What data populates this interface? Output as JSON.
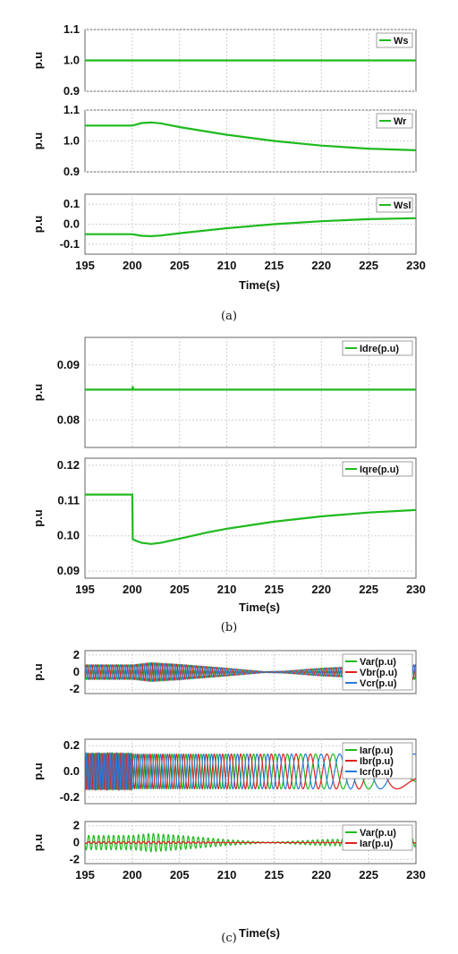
{
  "colors": {
    "green": "#1fba1f",
    "red": "#e02020",
    "blue": "#2a7ad8",
    "grid": "#cfcfcf"
  },
  "x_ticks": [
    "195",
    "200",
    "205",
    "210",
    "215",
    "220",
    "225",
    "230"
  ],
  "x_label": "Time(s)",
  "y_label": "p.u",
  "captions": {
    "a": "(a)",
    "b": "(b)",
    "c": "(c)"
  },
  "chart_data": [
    {
      "type": "line",
      "panel": "a1",
      "xlim": [
        195,
        230
      ],
      "ylim": [
        0.9,
        1.1
      ],
      "yticks": [
        "0.9",
        "1.0",
        "1.1"
      ],
      "ylabel": "p.u",
      "series": [
        {
          "name": "Ws",
          "color": "green",
          "x": [
            195,
            230
          ],
          "y": [
            1.0,
            1.0
          ]
        }
      ]
    },
    {
      "type": "line",
      "panel": "a2",
      "xlim": [
        195,
        230
      ],
      "ylim": [
        0.9,
        1.1
      ],
      "yticks": [
        "0.9",
        "1.0",
        "1.1"
      ],
      "ylabel": "p.u",
      "series": [
        {
          "name": "Wr",
          "color": "green",
          "x": [
            195,
            200,
            201,
            202,
            203,
            205,
            210,
            215,
            220,
            225,
            230
          ],
          "y": [
            1.05,
            1.05,
            1.058,
            1.06,
            1.057,
            1.045,
            1.02,
            1.0,
            0.985,
            0.975,
            0.97
          ]
        }
      ]
    },
    {
      "type": "line",
      "panel": "a3",
      "xlim": [
        195,
        230
      ],
      "ylim": [
        -0.15,
        0.15
      ],
      "yticks": [
        "-0.1",
        "0.0",
        "0.1"
      ],
      "ylabel": "p.u",
      "series": [
        {
          "name": "Wsl",
          "color": "green",
          "x": [
            195,
            200,
            201,
            202,
            203,
            205,
            210,
            215,
            220,
            225,
            230
          ],
          "y": [
            -0.05,
            -0.05,
            -0.058,
            -0.06,
            -0.057,
            -0.045,
            -0.02,
            0.0,
            0.015,
            0.025,
            0.03
          ]
        }
      ]
    },
    {
      "type": "line",
      "panel": "b1",
      "xlim": [
        195,
        230
      ],
      "ylim": [
        0.075,
        0.095
      ],
      "yticks": [
        "0.08",
        "0.09"
      ],
      "ylabel": "p.u",
      "series": [
        {
          "name": "Idre(p.u)",
          "color": "green",
          "x": [
            195,
            200,
            200.05,
            200.1,
            200.2,
            230
          ],
          "y": [
            0.0855,
            0.0855,
            0.0861,
            0.0855,
            0.0855,
            0.0855
          ]
        }
      ]
    },
    {
      "type": "line",
      "panel": "b2",
      "xlim": [
        195,
        230
      ],
      "ylim": [
        0.088,
        0.122
      ],
      "yticks": [
        "0.09",
        "0.10",
        "0.11",
        "0.12"
      ],
      "ylabel": "p.u",
      "series": [
        {
          "name": "Iqre(p.u)",
          "color": "green",
          "x": [
            195,
            200,
            200.05,
            200.5,
            201,
            202,
            203,
            205,
            208,
            210,
            215,
            220,
            225,
            230
          ],
          "y": [
            0.1117,
            0.1117,
            0.099,
            0.0985,
            0.098,
            0.0977,
            0.098,
            0.0992,
            0.101,
            0.102,
            0.104,
            0.1055,
            0.1066,
            0.1073
          ]
        }
      ]
    },
    {
      "type": "line",
      "panel": "c1",
      "xlim": [
        195,
        230
      ],
      "ylim": [
        -2.5,
        2.5
      ],
      "yticks": [
        "-2",
        "0",
        "2"
      ],
      "ylabel": "p.u",
      "oscillating": true,
      "envelope": {
        "t": [
          195,
          200,
          202,
          205,
          210,
          214,
          216,
          220,
          225,
          230
        ],
        "a": [
          0.85,
          0.85,
          1.1,
          0.9,
          0.45,
          0.05,
          0.1,
          0.45,
          0.7,
          0.85
        ]
      },
      "series": [
        {
          "name": "Var(p.u)",
          "color": "green",
          "phase": 0
        },
        {
          "name": "Vbr(p.u)",
          "color": "red",
          "phase": 2.094
        },
        {
          "name": "Vcr(p.u)",
          "color": "blue",
          "phase": 4.189
        }
      ]
    },
    {
      "type": "line",
      "panel": "c2",
      "xlim": [
        195,
        230
      ],
      "ylim": [
        -0.25,
        0.25
      ],
      "yticks": [
        "-0.2",
        "0.0",
        "0.2"
      ],
      "ylabel": "p.u",
      "slow_three_phase": true,
      "series": [
        {
          "name": "Iar(p.u)",
          "color": "green",
          "phase": 0
        },
        {
          "name": "Ibr(p.u)",
          "color": "red",
          "phase": 2.094
        },
        {
          "name": "Icr(p.u)",
          "color": "blue",
          "phase": 4.189
        }
      ]
    },
    {
      "type": "line",
      "panel": "c3",
      "xlim": [
        195,
        230
      ],
      "ylim": [
        -2.5,
        2.5
      ],
      "yticks": [
        "-2",
        "0",
        "2"
      ],
      "ylabel": "p.u",
      "oscillating": true,
      "envelope": {
        "t": [
          195,
          200,
          202,
          205,
          210,
          214,
          216,
          220,
          225,
          230
        ],
        "a": [
          0.85,
          0.85,
          1.1,
          0.85,
          0.35,
          0.05,
          0.1,
          0.35,
          0.45,
          0.5
        ]
      },
      "series": [
        {
          "name": "Var(p.u)",
          "color": "green",
          "phase": 0
        },
        {
          "name": "Iar(p.u)",
          "color": "red",
          "phase": 0,
          "amplitude_scale": 0.12
        }
      ]
    }
  ]
}
